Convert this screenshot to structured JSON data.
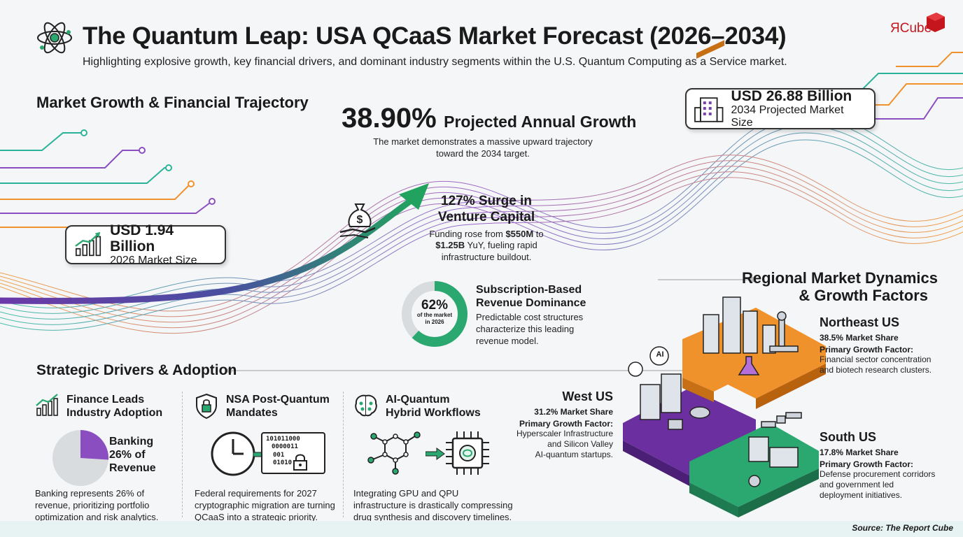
{
  "brand": {
    "logo_text": "ЯCube"
  },
  "header": {
    "title": "The Quantum Leap: USA QCaaS Market Forecast (2026–2034)",
    "subtitle": "Highlighting explosive growth, key financial drivers, and dominant industry segments within the U.S. Quantum Computing as a Service market."
  },
  "sections": {
    "growth": "Market Growth & Financial Trajectory",
    "drivers": "Strategic Drivers & Adoption",
    "regional": [
      "Regional Market Dynamics",
      "& Growth Factors"
    ]
  },
  "metrics": {
    "start": {
      "value": "USD 1.94 Billion",
      "label": "2026 Market Size"
    },
    "end": {
      "value": "USD 26.88 Billion",
      "label": "2034 Projected Market Size"
    },
    "growth": {
      "value": "38.90%",
      "label": "Projected Annual Growth",
      "desc": [
        "The market demonstrates a massive upward trajectory",
        "toward the 2034 target."
      ]
    },
    "vc": {
      "title": [
        "127% Surge in",
        "Venture Capital"
      ],
      "desc_pre": "Funding rose from ",
      "desc_b1": "$550M",
      "desc_mid": " to",
      "desc_b2": "$1.25B",
      "desc_post": " YuY, fueling rapid",
      "desc_last": "infrastructure buildout."
    },
    "subscription": {
      "percent": "62%",
      "percent_note": [
        "of the market",
        "in 2026"
      ],
      "percent_value": 0.62,
      "title": [
        "Subscription-Based",
        "Revenue Dominance"
      ],
      "desc": [
        "Predictable cost structures",
        "characterize this leading",
        "revenue model."
      ]
    }
  },
  "drivers": [
    {
      "title": [
        "Finance Leads",
        "Industry Adoption"
      ],
      "pie_label": [
        "Banking",
        "26% of",
        "Revenue"
      ],
      "pie_value": 0.26,
      "desc": [
        "Banking represents 26% of",
        "revenue, prioritizing portfolio",
        "optimization and risk analytics."
      ]
    },
    {
      "title": [
        "NSA Post-Quantum",
        "Mandates"
      ],
      "binary": [
        "101011000",
        "0000011",
        "001",
        "01010"
      ],
      "desc": [
        "Federal requirements for 2027",
        "cryptographic migration are turning",
        "QCaaS into a strategic priority."
      ]
    },
    {
      "title": [
        "AI-Quantum",
        "Hybrid Workflows"
      ],
      "desc": [
        "Integrating GPU and QPU",
        "infrastructure is drastically compressing",
        "drug synthesis and discovery timelines."
      ]
    }
  ],
  "regions": {
    "northeast": {
      "name": "Northeast US",
      "share": "38.5% Market Share",
      "factor_label": "Primary Growth Factor:",
      "factor": [
        "Financial sector concentration",
        "and biotech research clusters."
      ]
    },
    "west": {
      "name": "West US",
      "share": "31.2% Market Share",
      "factor_label": "Primary Growth Factor:",
      "factor": [
        "Hyperscaler Infrastructure",
        "and Silicon Valley",
        "AI-quantum startups."
      ]
    },
    "south": {
      "name": "South US",
      "share": "17.8% Market Share",
      "factor_label": "Primary Growth Factor:",
      "factor": [
        "Defense procurement corridors",
        "and government led",
        "deployment initiatives."
      ]
    },
    "ai_badge": "AI"
  },
  "source": "Source: The Report Cube",
  "colors": {
    "green": "#2aa870",
    "purple": "#7b3fb3",
    "orange": "#f0922b",
    "teal": "#2bb39a",
    "dark": "#1a1a1a"
  }
}
